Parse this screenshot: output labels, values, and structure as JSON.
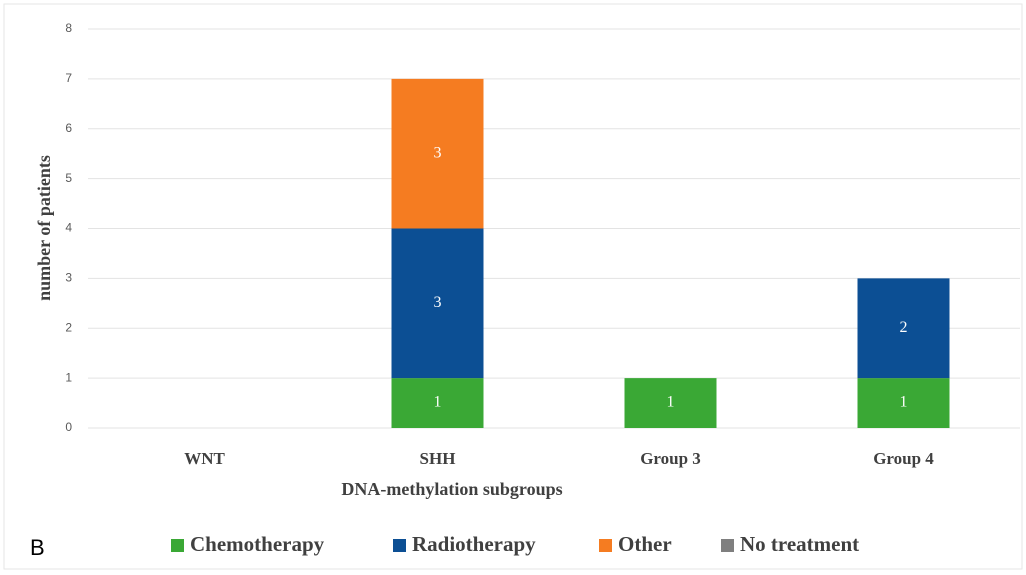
{
  "chart_data": {
    "type": "stacked_bar",
    "panel_label": "B",
    "x_label": "DNA-methylation subgroups",
    "y_label": "number of patients",
    "categories": [
      "WNT",
      "SHH",
      "Group 3",
      "Group 4"
    ],
    "series": [
      {
        "name": "Chemotherapy",
        "color": "#3aa835",
        "values": [
          0,
          1,
          1,
          1
        ]
      },
      {
        "name": "Radiotherapy",
        "color": "#0c4f94",
        "values": [
          0,
          3,
          0,
          2
        ]
      },
      {
        "name": "Other",
        "color": "#f57c21",
        "values": [
          0,
          3,
          0,
          0
        ]
      },
      {
        "name": "No treatment",
        "color": "#7f7f7f",
        "values": [
          0,
          0,
          0,
          0
        ]
      }
    ],
    "ylim": [
      0,
      8
    ],
    "yticks": [
      0,
      1,
      2,
      3,
      4,
      5,
      6,
      7,
      8
    ],
    "grid": true,
    "legend": "bottom"
  }
}
